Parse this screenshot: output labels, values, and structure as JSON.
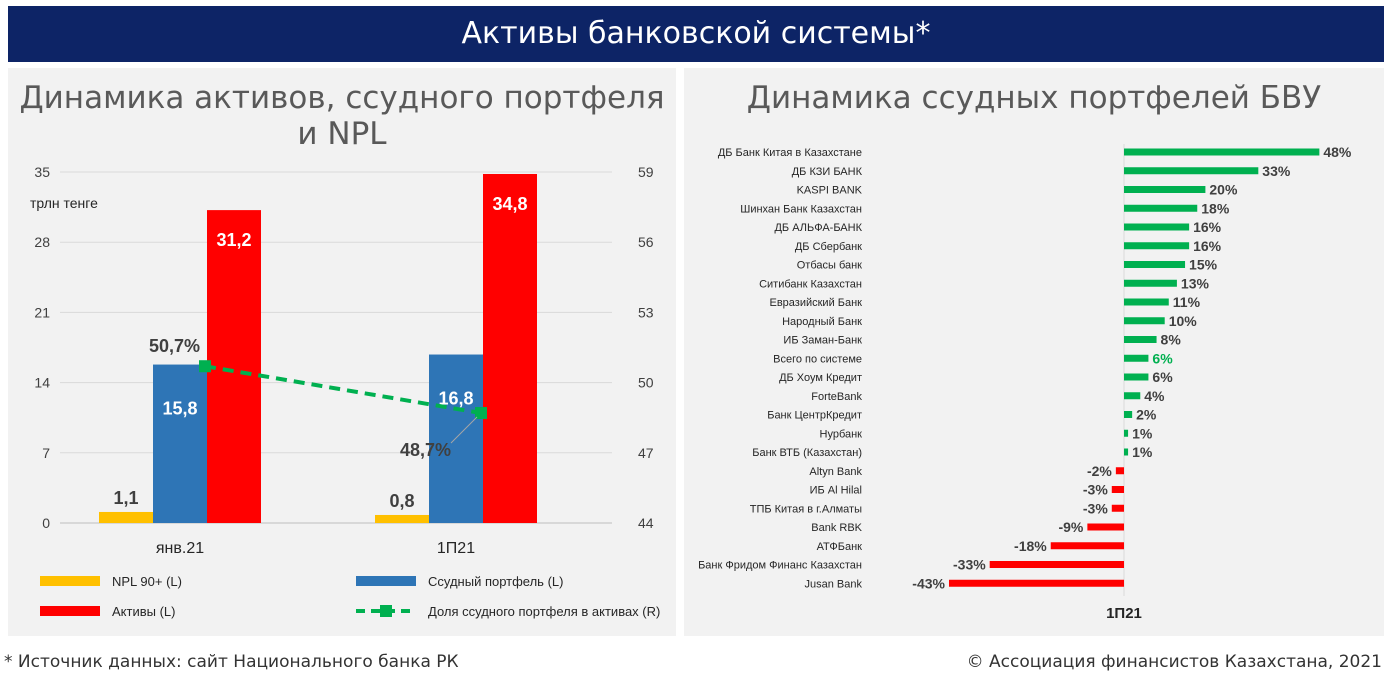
{
  "header": {
    "title": "Активы банковской системы*"
  },
  "footer": {
    "source": "* Источник данных: сайт Национального банка РК",
    "copyright": "© Ассоциация финансистов Казахстана, 2021"
  },
  "colors": {
    "banner": "#0d2466",
    "npl": "#ffc000",
    "loans": "#2e75b6",
    "assets": "#ff0000",
    "share": "#00b050",
    "growth_pos": "#00b050",
    "growth_neg": "#ff0000"
  },
  "chart_data": [
    {
      "type": "bar",
      "title": "Динамика активов, ссудного портфеля и NPL",
      "unit_label": "трлн тенге",
      "categories": [
        "янв.21",
        "1П21"
      ],
      "y_left": {
        "min": 0,
        "max": 35,
        "ticks": [
          0,
          7,
          14,
          21,
          28,
          35
        ]
      },
      "y_right": {
        "min": 44,
        "max": 59,
        "ticks": [
          44,
          47,
          50,
          53,
          56,
          59
        ]
      },
      "series": [
        {
          "key": "npl",
          "name": "NPL 90+ (L)",
          "kind": "bar",
          "axis": "left",
          "values": [
            1.1,
            0.8
          ],
          "labels": [
            "1,1",
            "0,8"
          ]
        },
        {
          "key": "loans",
          "name": "Ссудный портфель (L)",
          "kind": "bar",
          "axis": "left",
          "values": [
            15.8,
            16.8
          ],
          "labels": [
            "15,8",
            "16,8"
          ]
        },
        {
          "key": "assets",
          "name": "Активы (L)",
          "kind": "bar",
          "axis": "left",
          "values": [
            31.2,
            34.8
          ],
          "labels": [
            "31,2",
            "34,8"
          ]
        },
        {
          "key": "share",
          "name": "Доля ссудного портфеля в активах (R)",
          "kind": "line",
          "axis": "right",
          "values": [
            50.7,
            48.7
          ],
          "labels": [
            "50,7%",
            "48,7%"
          ]
        }
      ],
      "legend": {
        "position": "bottom",
        "items": [
          {
            "key": "npl",
            "label": "NPL 90+ (L)"
          },
          {
            "key": "loans",
            "label": "Ссудный портфель (L)"
          },
          {
            "key": "assets",
            "label": "Активы (L)"
          },
          {
            "key": "share",
            "label": "Доля ссудного портфеля в активах (R)"
          }
        ]
      }
    },
    {
      "type": "bar",
      "orientation": "horizontal",
      "title": "Динамика ссудных портфелей БВУ",
      "xlabel": "1П21",
      "highlight": "Всего по системе",
      "bars": [
        {
          "name": "ДБ Банк Китая в Казахстане",
          "value": 48,
          "label": "48%"
        },
        {
          "name": "ДБ КЗИ БАНК",
          "value": 33,
          "label": "33%"
        },
        {
          "name": "KASPI BANK",
          "value": 20,
          "label": "20%"
        },
        {
          "name": "Шинхан Банк Казахстан",
          "value": 18,
          "label": "18%"
        },
        {
          "name": "ДБ АЛЬФА-БАНК",
          "value": 16,
          "label": "16%"
        },
        {
          "name": "ДБ Сбербанк",
          "value": 16,
          "label": "16%"
        },
        {
          "name": "Отбасы банк",
          "value": 15,
          "label": "15%"
        },
        {
          "name": "Ситибанк Казахстан",
          "value": 13,
          "label": "13%"
        },
        {
          "name": "Евразийский Банк",
          "value": 11,
          "label": "11%"
        },
        {
          "name": "Народный Банк",
          "value": 10,
          "label": "10%"
        },
        {
          "name": "ИБ Заман-Банк",
          "value": 8,
          "label": "8%"
        },
        {
          "name": "Всего по системе",
          "value": 6,
          "label": "6%"
        },
        {
          "name": "ДБ Хоум Кредит",
          "value": 6,
          "label": "6%"
        },
        {
          "name": "ForteBank",
          "value": 4,
          "label": "4%"
        },
        {
          "name": "Банк ЦентрКредит",
          "value": 2,
          "label": "2%"
        },
        {
          "name": "Нурбанк",
          "value": 1,
          "label": "1%"
        },
        {
          "name": "Банк ВТБ (Казахстан)",
          "value": 1,
          "label": "1%"
        },
        {
          "name": "Altyn Bank",
          "value": -2,
          "label": "-2%"
        },
        {
          "name": "ИБ Al Hilal",
          "value": -3,
          "label": "-3%"
        },
        {
          "name": "ТПБ Китая в г.Алматы",
          "value": -3,
          "label": "-3%"
        },
        {
          "name": "Bank RBK",
          "value": -9,
          "label": "-9%"
        },
        {
          "name": "АТФБанк",
          "value": -18,
          "label": "-18%"
        },
        {
          "name": "Банк Фридом Финанс Казахстан",
          "value": -33,
          "label": "-33%"
        },
        {
          "name": "Jusan Bank",
          "value": -43,
          "label": "-43%"
        }
      ]
    }
  ]
}
